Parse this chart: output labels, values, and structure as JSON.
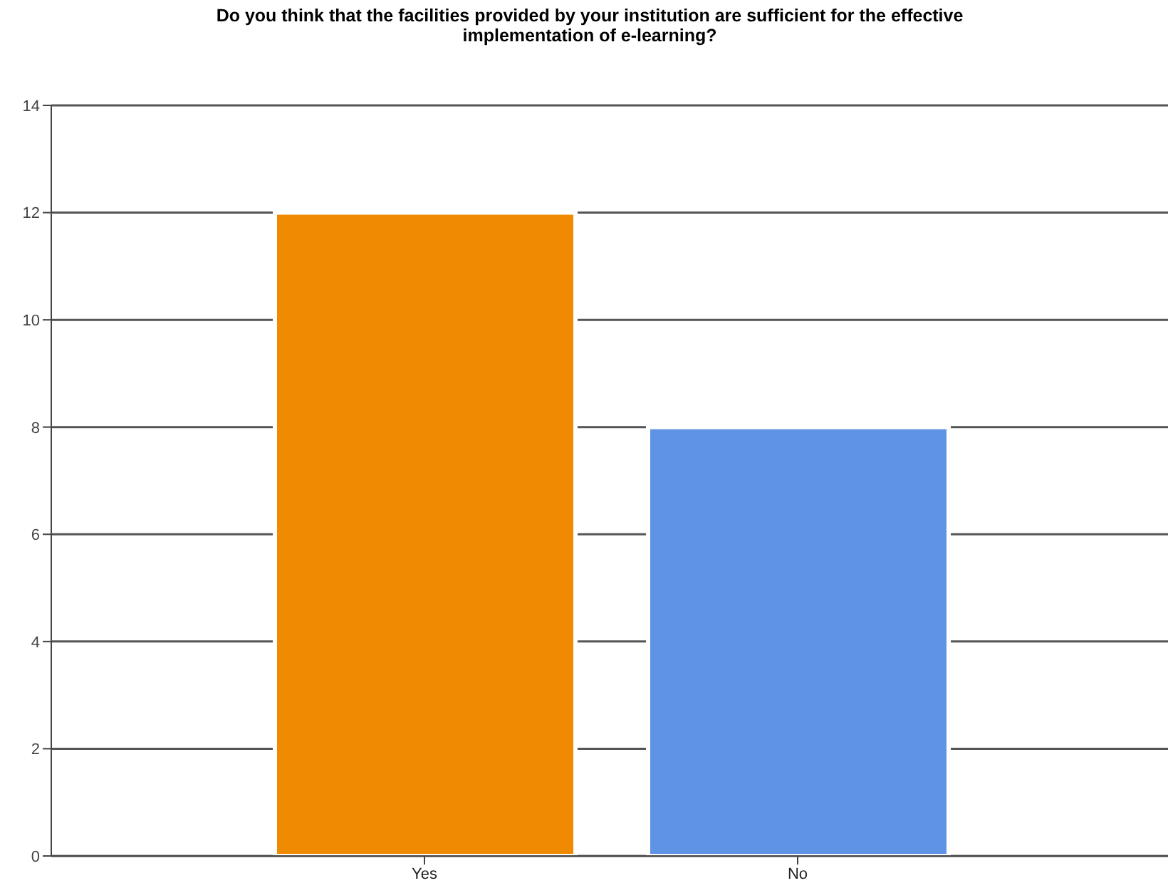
{
  "chart_data": {
    "type": "bar",
    "title": "Do you think that the facilities provided by your institution are sufficient for the effective implementation of e-learning?",
    "categories": [
      "Yes",
      "No"
    ],
    "values": [
      12,
      8
    ],
    "colors": [
      "#f08a00",
      "#5f93e6"
    ],
    "ylim": [
      0,
      14
    ],
    "yticks": [
      0,
      2,
      4,
      6,
      8,
      10,
      12,
      14
    ],
    "grid": "y"
  }
}
